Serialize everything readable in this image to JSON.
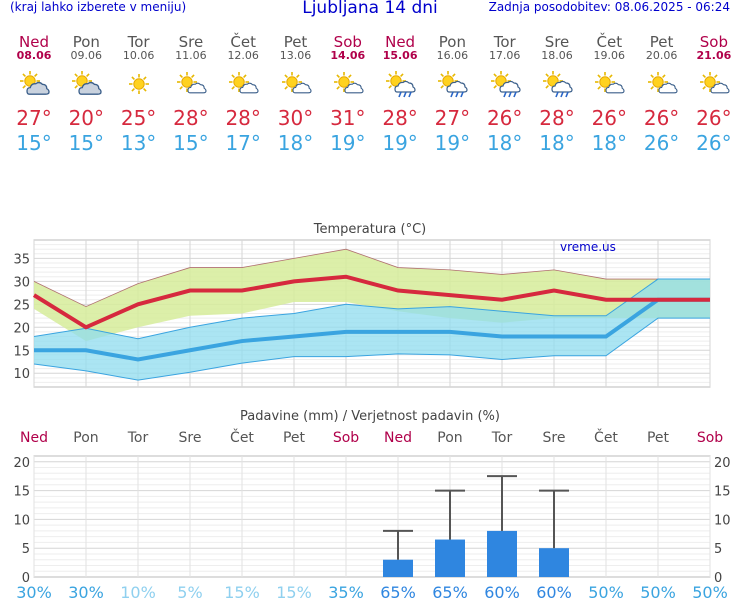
{
  "header": {
    "menu_note": "(kraj lahko izberete v meniju)",
    "title": "Ljubljana 14 dni",
    "updated": "Zadnja posodobitev: 08.06.2025 - 06:24"
  },
  "days": [
    {
      "name": "Ned",
      "date": "08.06",
      "weekend": true,
      "icon": "partly-cloudy-icon",
      "max": "27°",
      "min": "15°"
    },
    {
      "name": "Pon",
      "date": "09.06",
      "weekend": false,
      "icon": "partly-cloudy-icon",
      "max": "20°",
      "min": "15°"
    },
    {
      "name": "Tor",
      "date": "10.06",
      "weekend": false,
      "icon": "sunny-icon",
      "max": "25°",
      "min": "13°"
    },
    {
      "name": "Sre",
      "date": "11.06",
      "weekend": false,
      "icon": "sun-cloud-icon",
      "max": "28°",
      "min": "15°"
    },
    {
      "name": "Čet",
      "date": "12.06",
      "weekend": false,
      "icon": "sun-cloud-icon",
      "max": "28°",
      "min": "17°"
    },
    {
      "name": "Pet",
      "date": "13.06",
      "weekend": false,
      "icon": "sun-cloud-icon",
      "max": "30°",
      "min": "18°"
    },
    {
      "name": "Sob",
      "date": "14.06",
      "weekend": true,
      "icon": "sun-cloud-icon",
      "max": "31°",
      "min": "19°"
    },
    {
      "name": "Ned",
      "date": "15.06",
      "weekend": true,
      "icon": "sun-rain-icon",
      "max": "28°",
      "min": "19°"
    },
    {
      "name": "Pon",
      "date": "16.06",
      "weekend": false,
      "icon": "sun-rain-icon",
      "max": "27°",
      "min": "19°"
    },
    {
      "name": "Tor",
      "date": "17.06",
      "weekend": false,
      "icon": "sun-rain-icon",
      "max": "26°",
      "min": "18°"
    },
    {
      "name": "Sre",
      "date": "18.06",
      "weekend": false,
      "icon": "sun-rain-icon",
      "max": "28°",
      "min": "18°"
    },
    {
      "name": "Čet",
      "date": "19.06",
      "weekend": false,
      "icon": "sun-cloud-icon",
      "max": "26°",
      "min": "18°"
    },
    {
      "name": "Pet",
      "date": "20.06",
      "weekend": false,
      "icon": "sun-cloud-icon",
      "max": "26°",
      "min": "26°"
    },
    {
      "name": "Sob",
      "date": "21.06",
      "weekend": true,
      "icon": "sun-cloud-icon",
      "max": "26°",
      "min": "26°"
    }
  ],
  "colors": {
    "max": "#d6293e",
    "min": "#3aa4e0",
    "weekend": "#b0004a",
    "max_band": "#d6ec9a",
    "min_band": "#8fdcef",
    "overlap": "#77cc88",
    "bar": "#2f86e0"
  },
  "chart_data": [
    {
      "type": "line",
      "title": "Temperatura (°C)",
      "watermark": "vreme.us",
      "x": [
        "08.06",
        "09.06",
        "10.06",
        "11.06",
        "12.06",
        "13.06",
        "14.06",
        "15.06",
        "16.06",
        "17.06",
        "18.06",
        "19.06",
        "20.06",
        "21.06"
      ],
      "ylim": [
        7,
        39
      ],
      "yticks": [
        10,
        15,
        20,
        25,
        30,
        35
      ],
      "grid": true,
      "series": [
        {
          "role": "max",
          "values": [
            27,
            20,
            25,
            28,
            28,
            30,
            31,
            28,
            27,
            26,
            28,
            26,
            26,
            26
          ]
        },
        {
          "role": "min",
          "values": [
            15,
            15,
            13,
            15,
            17,
            18,
            19,
            19,
            19,
            18,
            18,
            18,
            26,
            26
          ]
        },
        {
          "role": "max_band_upper",
          "values": [
            30,
            24.5,
            29.5,
            33,
            33,
            35,
            37,
            33,
            32.5,
            31.5,
            32.5,
            30.5,
            30.5,
            30.5
          ]
        },
        {
          "role": "max_band_lower",
          "values": [
            24,
            17,
            20,
            22.5,
            23,
            25.5,
            25.5,
            23.5,
            22,
            21,
            22,
            22,
            22,
            22
          ]
        },
        {
          "role": "min_band_upper",
          "values": [
            18,
            19.8,
            17.5,
            20,
            22,
            23,
            25,
            24,
            24.5,
            23.5,
            22.5,
            22.5,
            30.5,
            30.5
          ]
        },
        {
          "role": "min_band_lower",
          "values": [
            12,
            10.5,
            8.5,
            10.2,
            12.2,
            13.6,
            13.6,
            14.2,
            14,
            13,
            13.8,
            13.8,
            22,
            22
          ]
        }
      ]
    },
    {
      "type": "bar",
      "title": "Padavine (mm) / Verjetnost padavin (%)",
      "categories": [
        "Ned",
        "Pon",
        "Tor",
        "Sre",
        "Čet",
        "Pet",
        "Sob",
        "Ned",
        "Pon",
        "Tor",
        "Sre",
        "Čet",
        "Pet",
        "Sob"
      ],
      "ylim": [
        0,
        21
      ],
      "yticks": [
        0,
        5,
        10,
        15,
        20
      ],
      "grid": true,
      "values": [
        0,
        0,
        0,
        0,
        0,
        0,
        0,
        3,
        6.5,
        8,
        5,
        0,
        0,
        0
      ],
      "error_max": [
        0,
        0,
        0,
        0,
        0,
        0,
        0,
        8,
        15,
        17.5,
        15,
        0,
        0,
        0
      ],
      "probability": [
        "30%",
        "30%",
        "10%",
        "5%",
        "15%",
        "15%",
        "35%",
        "65%",
        "65%",
        "60%",
        "60%",
        "50%",
        "50%",
        "50%"
      ]
    }
  ]
}
